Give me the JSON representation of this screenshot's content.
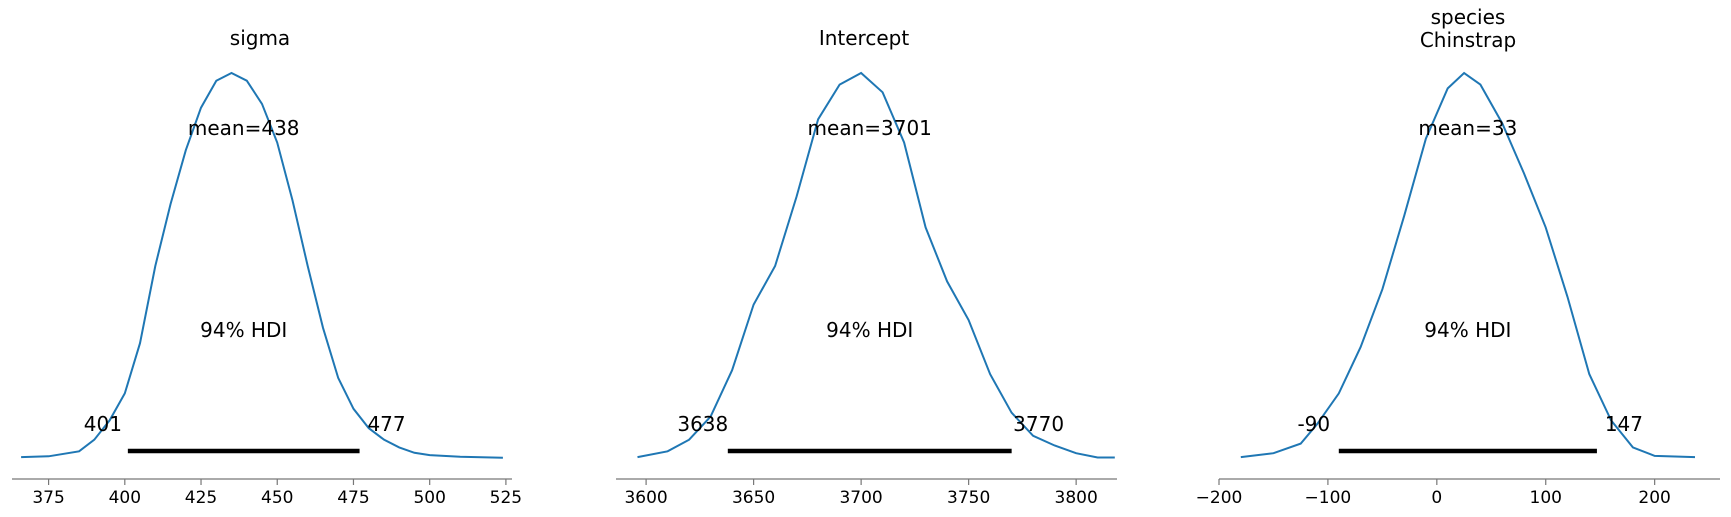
{
  "chart_data": [
    {
      "type": "line",
      "title": [
        "sigma"
      ],
      "mean_label": "mean=438",
      "hdi_label": "94% HDI",
      "hdi_low_label": "401",
      "hdi_high_label": "477",
      "hdi": [
        401,
        477
      ],
      "xlim": [
        363,
        527
      ],
      "xticks": [
        375,
        400,
        425,
        450,
        475,
        500,
        525
      ],
      "xtick_labels": [
        "375",
        "400",
        "425",
        "450",
        "475",
        "500",
        "525"
      ],
      "color": "#1f77b4",
      "x": [
        366,
        375,
        385,
        390,
        395,
        400,
        405,
        410,
        415,
        420,
        425,
        430,
        435,
        440,
        445,
        450,
        455,
        460,
        465,
        470,
        475,
        480,
        485,
        490,
        495,
        500,
        510,
        524
      ],
      "y": [
        0.005,
        0.007,
        0.02,
        0.05,
        0.1,
        0.17,
        0.3,
        0.5,
        0.66,
        0.8,
        0.91,
        0.98,
        1.0,
        0.98,
        0.92,
        0.82,
        0.67,
        0.5,
        0.34,
        0.21,
        0.13,
        0.08,
        0.05,
        0.03,
        0.016,
        0.01,
        0.006,
        0.003
      ]
    },
    {
      "type": "line",
      "title": [
        "Intercept"
      ],
      "mean_label": "mean=3701",
      "hdi_label": "94% HDI",
      "hdi_low_label": "3638",
      "hdi_high_label": "3770",
      "hdi": [
        3638,
        3770
      ],
      "xlim": [
        3586,
        3819
      ],
      "xticks": [
        3600,
        3650,
        3700,
        3750,
        3800
      ],
      "xtick_labels": [
        "3600",
        "3650",
        "3700",
        "3750",
        "3800"
      ],
      "color": "#1f77b4",
      "x": [
        3596,
        3610,
        3620,
        3630,
        3640,
        3650,
        3660,
        3670,
        3680,
        3690,
        3700,
        3710,
        3720,
        3730,
        3740,
        3750,
        3760,
        3770,
        3780,
        3790,
        3800,
        3810,
        3818
      ],
      "y": [
        0.005,
        0.02,
        0.05,
        0.11,
        0.23,
        0.4,
        0.5,
        0.68,
        0.88,
        0.97,
        1.0,
        0.95,
        0.82,
        0.6,
        0.46,
        0.36,
        0.22,
        0.12,
        0.06,
        0.035,
        0.015,
        0.004,
        0.004
      ]
    },
    {
      "type": "line",
      "title": [
        "species",
        "Chinstrap"
      ],
      "mean_label": "mean=33",
      "hdi_label": "94% HDI",
      "hdi_low_label": "-90",
      "hdi_high_label": "147",
      "hdi": [
        -90,
        147
      ],
      "xlim": [
        -200,
        260
      ],
      "xticks": [
        -200,
        -100,
        0,
        100,
        200
      ],
      "xtick_labels": [
        "−200",
        "−100",
        "0",
        "100",
        "200"
      ],
      "color": "#1f77b4",
      "x": [
        -180,
        -150,
        -125,
        -110,
        -90,
        -70,
        -50,
        -30,
        -10,
        10,
        25,
        40,
        60,
        80,
        100,
        120,
        140,
        160,
        180,
        200,
        237
      ],
      "y": [
        0.005,
        0.015,
        0.04,
        0.09,
        0.17,
        0.29,
        0.44,
        0.63,
        0.83,
        0.96,
        1.0,
        0.97,
        0.87,
        0.74,
        0.6,
        0.42,
        0.22,
        0.1,
        0.03,
        0.008,
        0.005
      ]
    }
  ]
}
